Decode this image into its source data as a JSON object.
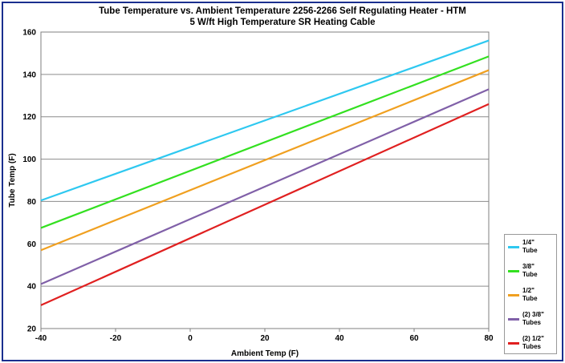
{
  "chart_data": {
    "type": "line",
    "title": "Tube Temperature vs.  Ambient Temperature 2256-2266 Self Regulating Heater - HTM",
    "subtitle": "5 W/ft  High Temperature SR Heating Cable",
    "xlabel": "Ambient Temp (F)",
    "ylabel": "Tube Temp (F)",
    "xlim": [
      -40,
      80
    ],
    "ylim": [
      20,
      160
    ],
    "xticks": [
      -40,
      -20,
      0,
      20,
      40,
      60,
      80
    ],
    "yticks": [
      20,
      40,
      60,
      80,
      100,
      120,
      140,
      160
    ],
    "grid": "horizontal",
    "legend_position": "right",
    "series": [
      {
        "name": "1/4\" Tube",
        "color": "#2ec8f0",
        "x": [
          -40,
          80
        ],
        "y": [
          80.5,
          156
        ]
      },
      {
        "name": "3/8\" Tube",
        "color": "#33e020",
        "x": [
          -40,
          80
        ],
        "y": [
          67.5,
          148.5
        ]
      },
      {
        "name": "1/2\" Tube",
        "color": "#f0a020",
        "x": [
          -40,
          80
        ],
        "y": [
          57,
          142
        ]
      },
      {
        "name": "(2) 3/8\" Tubes",
        "color": "#8060a8",
        "x": [
          -40,
          80
        ],
        "y": [
          41,
          133
        ]
      },
      {
        "name": "(2) 1/2\" Tubes",
        "color": "#e02020",
        "x": [
          -40,
          80
        ],
        "y": [
          31,
          126
        ]
      }
    ]
  },
  "legend": {
    "items": [
      {
        "label": "1/4\"\nTube",
        "color": "#2ec8f0"
      },
      {
        "label": "3/8\"\nTube",
        "color": "#33e020"
      },
      {
        "label": "1/2\"\nTube",
        "color": "#f0a020"
      },
      {
        "label": "(2) 3/8\"\nTubes",
        "color": "#8060a8"
      },
      {
        "label": "(2) 1/2\"\nTubes",
        "color": "#e02020"
      }
    ]
  }
}
